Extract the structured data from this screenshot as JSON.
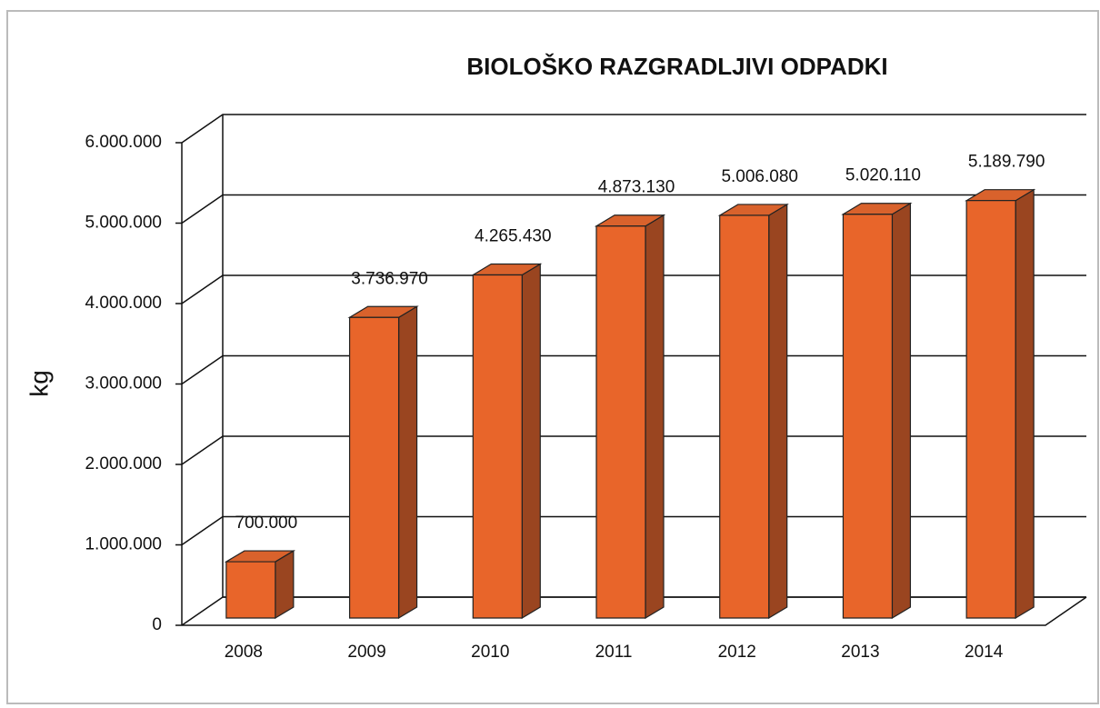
{
  "chart_data": {
    "type": "bar3d",
    "title": "BIOLOŠKO RAZGRADLJIVI ODPADKI",
    "ylabel": "kg",
    "categories": [
      "2008",
      "2009",
      "2010",
      "2011",
      "2012",
      "2013",
      "2014"
    ],
    "values": [
      700000,
      3736970,
      4265430,
      4873130,
      5006080,
      5020110,
      5189790
    ],
    "value_labels": [
      "700.000",
      "3.736.970",
      "4.265.430",
      "4.873.130",
      "5.006.080",
      "5.020.110",
      "5.189.790"
    ],
    "color": "#e8652a",
    "side_color": "#9a4520",
    "top_color": "#d9622c",
    "ylim": [
      0,
      6000000
    ],
    "yticks": [
      0,
      {
        "value": 1000000,
        "label": "1.000.000"
      },
      {
        "value": 2000000,
        "label": "2.000.000"
      },
      {
        "value": 3000000,
        "label": "3.000.000"
      },
      {
        "value": 4000000,
        "label": "4.000.000"
      },
      {
        "value": 5000000,
        "label": "5.000.000"
      },
      {
        "value": 6000000,
        "label": "6.000.000"
      }
    ],
    "grid": true
  }
}
